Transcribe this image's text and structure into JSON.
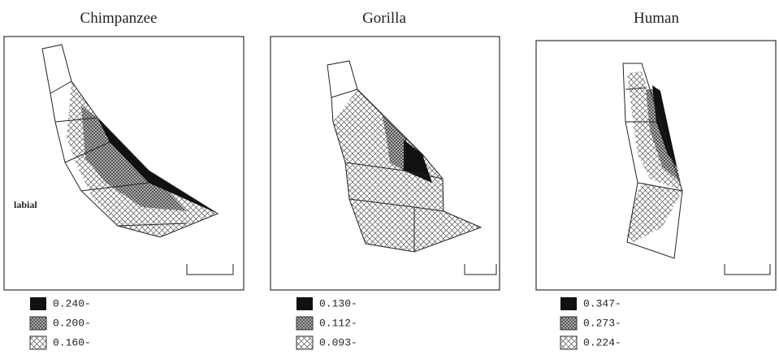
{
  "panels": [
    {
      "title": "Chimpanzee",
      "annotation": "labial",
      "legend": [
        "0.240-",
        "0.200-",
        "0.160-"
      ]
    },
    {
      "title": "Gorilla",
      "legend": [
        "0.130-",
        "0.112-",
        "0.093-"
      ]
    },
    {
      "title": "Human",
      "legend": [
        "0.347-",
        "0.273-",
        "0.224-"
      ]
    }
  ]
}
